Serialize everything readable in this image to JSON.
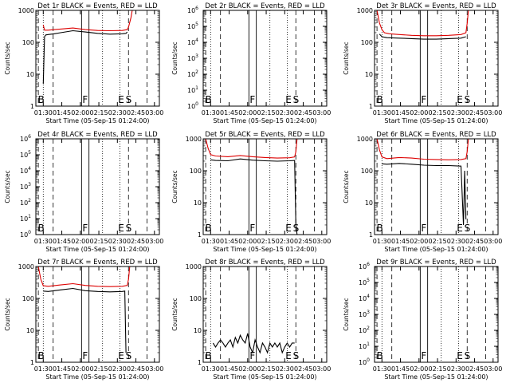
{
  "colors": {
    "events": "#000000",
    "lld": "#dd0000",
    "axes": "#000000",
    "background": "#ffffff"
  },
  "chart_data": [
    {
      "type": "line",
      "title": "Det 1r BLACK = Events, RED = LLD",
      "ylabel": "Counts/sec",
      "xlabel": "Start Time (05-Sep-15 01:24:00)",
      "yscale": "log",
      "ylim": [
        1,
        1000
      ],
      "y_ticks": [
        "1",
        "10",
        "100",
        "1000"
      ],
      "x_ticks": [
        "01:30",
        "01:45",
        "02:00",
        "02:15",
        "02:30",
        "02:45",
        "03:00"
      ],
      "x_range_minutes": [
        0,
        100
      ],
      "markers": [
        "B",
        "F",
        "E",
        "S"
      ],
      "series": [
        {
          "role": "lld",
          "x": [
            6,
            7,
            10,
            15,
            20,
            30,
            40,
            50,
            60,
            70,
            74,
            75,
            77,
            78
          ],
          "y": [
            350,
            240,
            240,
            250,
            260,
            280,
            250,
            235,
            230,
            235,
            250,
            300,
            600,
            1000
          ]
        },
        {
          "role": "events",
          "x": [
            6,
            7,
            8,
            10,
            15,
            20,
            30,
            40,
            50,
            60,
            70,
            73,
            74
          ],
          "y": [
            5,
            150,
            170,
            175,
            185,
            200,
            230,
            210,
            190,
            180,
            185,
            190,
            210
          ]
        }
      ]
    },
    {
      "type": "line",
      "title": "Det 2r BLACK = Events, RED = LLD",
      "ylabel": "Counts/sec",
      "xlabel": "Start Time (05-Sep-15 01:24:00)",
      "yscale": "log",
      "ylim": [
        1,
        1000000
      ],
      "y_ticks": [
        "10^0",
        "10^1",
        "10^2",
        "10^3",
        "10^4",
        "10^5",
        "10^6"
      ],
      "x_ticks": [
        "01:30",
        "01:45",
        "02:00",
        "02:15",
        "02:30",
        "02:45",
        "03:00"
      ],
      "x_range_minutes": [
        0,
        100
      ],
      "markers": [
        "B",
        "F",
        "E",
        "S"
      ],
      "series": []
    },
    {
      "type": "line",
      "title": "Det 3r BLACK = Events, RED = LLD",
      "ylabel": "Counts/sec",
      "xlabel": "Start Time (05-Sep-15 01:24:00)",
      "yscale": "log",
      "ylim": [
        1,
        1000
      ],
      "y_ticks": [
        "1",
        "10",
        "100",
        "1000"
      ],
      "x_ticks": [
        "01:30",
        "01:45",
        "02:00",
        "02:15",
        "02:30",
        "02:45",
        "03:00"
      ],
      "x_range_minutes": [
        0,
        100
      ],
      "markers": [
        "B",
        "F",
        "E",
        "S"
      ],
      "series": [
        {
          "role": "lld",
          "x": [
            2,
            4,
            6,
            8,
            12,
            20,
            30,
            40,
            50,
            60,
            70,
            74,
            75,
            76
          ],
          "y": [
            1000,
            400,
            250,
            200,
            185,
            175,
            165,
            160,
            160,
            165,
            175,
            200,
            400,
            1000
          ]
        },
        {
          "role": "events",
          "x": [
            4,
            6,
            10,
            20,
            30,
            40,
            50,
            60,
            70,
            74
          ],
          "y": [
            180,
            150,
            140,
            135,
            130,
            125,
            125,
            130,
            135,
            150
          ]
        }
      ]
    },
    {
      "type": "line",
      "title": "Det 4r BLACK = Events, RED = LLD",
      "ylabel": "Counts/sec",
      "xlabel": "Start Time (05-Sep-15 01:24:00)",
      "yscale": "log",
      "ylim": [
        1,
        1000000
      ],
      "y_ticks": [
        "10^0",
        "10^1",
        "10^2",
        "10^3",
        "10^4",
        "10^5",
        "10^6"
      ],
      "x_ticks": [
        "01:30",
        "01:45",
        "02:00",
        "02:15",
        "02:30",
        "02:45",
        "03:00"
      ],
      "x_range_minutes": [
        0,
        100
      ],
      "markers": [
        "B",
        "F",
        "E",
        "S"
      ],
      "series": []
    },
    {
      "type": "line",
      "title": "Det 5r BLACK = Events, RED = LLD",
      "ylabel": "Counts/sec",
      "xlabel": "Start Time (05-Sep-15 01:24:00)",
      "yscale": "log",
      "ylim": [
        1,
        1000
      ],
      "y_ticks": [
        "1",
        "10",
        "100",
        "1000"
      ],
      "x_ticks": [
        "01:30",
        "01:45",
        "02:00",
        "02:15",
        "02:30",
        "02:45",
        "03:00"
      ],
      "x_range_minutes": [
        0,
        100
      ],
      "markers": [
        "B",
        "F",
        "E",
        "S"
      ],
      "series": [
        {
          "role": "lld",
          "x": [
            2,
            4,
            6,
            10,
            20,
            30,
            40,
            50,
            60,
            70,
            74,
            75,
            76
          ],
          "y": [
            1000,
            500,
            320,
            290,
            275,
            300,
            275,
            260,
            250,
            255,
            270,
            400,
            1000
          ]
        },
        {
          "role": "events",
          "x": [
            6,
            10,
            20,
            30,
            40,
            50,
            60,
            70,
            74,
            75,
            76
          ],
          "y": [
            220,
            210,
            205,
            235,
            215,
            205,
            200,
            205,
            210,
            2,
            1
          ]
        }
      ]
    },
    {
      "type": "line",
      "title": "Det 6r BLACK = Events, RED = LLD",
      "ylabel": "Counts/sec",
      "xlabel": "Start Time (05-Sep-15 01:24:00)",
      "yscale": "log",
      "ylim": [
        1,
        1000
      ],
      "y_ticks": [
        "1",
        "10",
        "100",
        "1000"
      ],
      "x_ticks": [
        "01:30",
        "01:45",
        "02:00",
        "02:15",
        "02:30",
        "02:45",
        "03:00"
      ],
      "x_range_minutes": [
        0,
        100
      ],
      "markers": [
        "B",
        "F",
        "E",
        "S"
      ],
      "series": [
        {
          "role": "lld",
          "x": [
            2,
            4,
            6,
            10,
            20,
            30,
            40,
            50,
            60,
            70,
            74,
            75,
            76
          ],
          "y": [
            1000,
            450,
            270,
            240,
            260,
            250,
            230,
            225,
            220,
            225,
            240,
            400,
            1000
          ]
        },
        {
          "role": "events",
          "x": [
            6,
            10,
            20,
            30,
            40,
            50,
            60,
            70,
            72,
            73,
            74
          ],
          "y": [
            165,
            160,
            170,
            160,
            150,
            145,
            145,
            140,
            2,
            100,
            3
          ]
        }
      ]
    },
    {
      "type": "line",
      "title": "Det 7r BLACK = Events, RED = LLD",
      "ylabel": "Counts/sec",
      "xlabel": "Start Time (05-Sep-15 01:24:00)",
      "yscale": "log",
      "ylim": [
        1,
        1000
      ],
      "y_ticks": [
        "1",
        "10",
        "100",
        "1000"
      ],
      "x_ticks": [
        "01:30",
        "01:45",
        "02:00",
        "02:15",
        "02:30",
        "02:45",
        "03:00"
      ],
      "x_range_minutes": [
        0,
        100
      ],
      "markers": [
        "B",
        "F",
        "E",
        "S"
      ],
      "series": [
        {
          "role": "lld",
          "x": [
            2,
            4,
            6,
            10,
            20,
            30,
            40,
            50,
            60,
            70,
            74,
            75,
            76
          ],
          "y": [
            1000,
            400,
            250,
            240,
            265,
            290,
            255,
            240,
            235,
            240,
            255,
            400,
            1000
          ]
        },
        {
          "role": "events",
          "x": [
            6,
            10,
            20,
            30,
            40,
            50,
            60,
            70,
            72,
            73
          ],
          "y": [
            170,
            165,
            185,
            205,
            175,
            165,
            160,
            165,
            170,
            2
          ]
        }
      ]
    },
    {
      "type": "line",
      "title": "Det 8r BLACK = Events, RED = LLD",
      "ylabel": "Counts/sec",
      "xlabel": "Start Time (05-Sep-15 01:24:00)",
      "yscale": "log",
      "ylim": [
        1,
        1000
      ],
      "y_ticks": [
        "1",
        "10",
        "100",
        "1000"
      ],
      "x_ticks": [
        "01:30",
        "01:45",
        "02:00",
        "02:15",
        "02:30",
        "02:45",
        "03:00"
      ],
      "x_range_minutes": [
        0,
        100
      ],
      "markers": [
        "B",
        "F",
        "E",
        "S"
      ],
      "series": [
        {
          "role": "events",
          "x": [
            8,
            10,
            12,
            14,
            16,
            18,
            20,
            22,
            24,
            26,
            28,
            30,
            32,
            34,
            36,
            38,
            40,
            42,
            44,
            46,
            48,
            50,
            52,
            54,
            56,
            58,
            60,
            62,
            64,
            66,
            68,
            70,
            72,
            74
          ],
          "y": [
            4,
            3,
            4,
            5,
            4,
            3,
            4,
            5,
            3,
            6,
            4,
            7,
            5,
            4,
            8,
            3,
            2,
            5,
            3,
            2,
            4,
            3,
            2,
            4,
            3,
            4,
            3,
            4,
            2,
            3,
            4,
            3,
            4,
            4
          ]
        }
      ]
    },
    {
      "type": "line",
      "title": "Det 9r BLACK = Events, RED = LLD",
      "ylabel": "Counts/sec",
      "xlabel": "Start Time (05-Sep-15 01:24:00)",
      "yscale": "log",
      "ylim": [
        1,
        1000000
      ],
      "y_ticks": [
        "10^0",
        "10^1",
        "10^2",
        "10^3",
        "10^4",
        "10^5",
        "10^6"
      ],
      "x_ticks": [
        "01:30",
        "01:45",
        "02:00",
        "02:15",
        "02:30",
        "02:45",
        "03:00"
      ],
      "x_range_minutes": [
        0,
        100
      ],
      "markers": [
        "B",
        "F",
        "E",
        "S"
      ],
      "series": []
    }
  ]
}
